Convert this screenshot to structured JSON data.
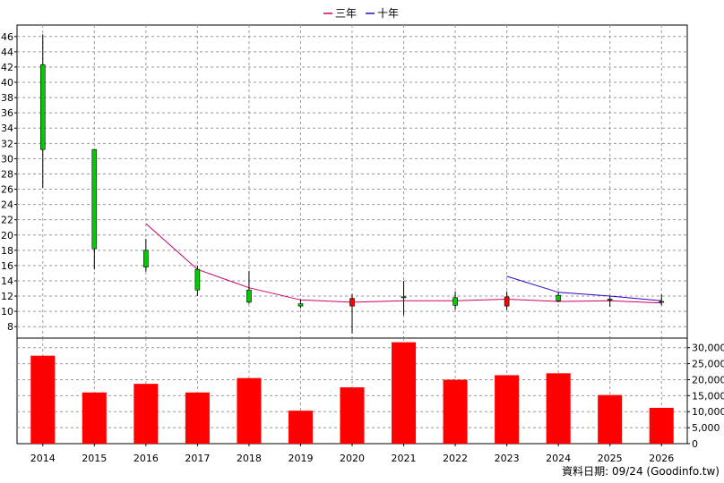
{
  "chart_data": [
    {
      "type": "candlestick",
      "panel": "price",
      "categories": [
        "2014",
        "2015",
        "2016",
        "2017",
        "2018",
        "2019",
        "2020",
        "2021",
        "2022",
        "2023",
        "2024",
        "2025",
        "2026"
      ],
      "ohlc": [
        {
          "x": "2014",
          "open": 31.2,
          "high": 46.3,
          "low": 26.2,
          "close": 42.3
        },
        {
          "x": "2015",
          "open": 18.2,
          "high": 31.2,
          "low": 15.5,
          "close": 31.2
        },
        {
          "x": "2016",
          "open": 15.8,
          "high": 19.5,
          "low": 15.2,
          "close": 18.0
        },
        {
          "x": "2017",
          "open": 12.8,
          "high": 16.0,
          "low": 12.0,
          "close": 15.5
        },
        {
          "x": "2018",
          "open": 11.2,
          "high": 15.3,
          "low": 11.0,
          "close": 12.8
        },
        {
          "x": "2019",
          "open": 10.7,
          "high": 11.6,
          "low": 10.4,
          "close": 11.0
        },
        {
          "x": "2020",
          "open": 11.7,
          "high": 12.3,
          "low": 7.1,
          "close": 10.7
        },
        {
          "x": "2021",
          "open": 11.8,
          "high": 14.0,
          "low": 9.5,
          "close": 11.9
        },
        {
          "x": "2022",
          "open": 10.8,
          "high": 12.6,
          "low": 10.2,
          "close": 11.8
        },
        {
          "x": "2023",
          "open": 11.9,
          "high": 12.6,
          "low": 10.2,
          "close": 10.7
        },
        {
          "x": "2024",
          "open": 11.4,
          "high": 12.5,
          "low": 11.2,
          "close": 12.1
        },
        {
          "x": "2025",
          "open": 11.5,
          "high": 12.0,
          "low": 10.6,
          "close": 11.6
        },
        {
          "x": "2026",
          "open": 11.2,
          "high": 12.2,
          "low": 10.8,
          "close": 11.3
        }
      ],
      "series": [
        {
          "name": "三年",
          "color": "#cc0066",
          "values": [
            null,
            null,
            21.5,
            15.5,
            13.1,
            11.5,
            11.2,
            11.4,
            11.4,
            11.6,
            11.3,
            11.4,
            11.1
          ]
        },
        {
          "name": "十年",
          "color": "#3300cc",
          "values": [
            null,
            null,
            null,
            null,
            null,
            null,
            null,
            null,
            null,
            14.6,
            12.5,
            12.0,
            11.4
          ]
        }
      ],
      "yticks": [
        8,
        10,
        12,
        14,
        16,
        18,
        20,
        22,
        24,
        26,
        28,
        30,
        32,
        34,
        36,
        38,
        40,
        42,
        44,
        46
      ],
      "ylim": [
        6.5,
        47.5
      ],
      "up_color": "#00cc00",
      "down_color": "#ff0000",
      "grid": true,
      "legend_position": "top-center",
      "y_axis_side": "left"
    },
    {
      "type": "bar",
      "panel": "volume",
      "categories": [
        "2014",
        "2015",
        "2016",
        "2017",
        "2018",
        "2019",
        "2020",
        "2021",
        "2022",
        "2023",
        "2024",
        "2025",
        "2026"
      ],
      "values": [
        27500,
        16000,
        18700,
        16000,
        20500,
        10300,
        17600,
        31700,
        20000,
        21400,
        22000,
        15200,
        11200
      ],
      "yticks": [
        0,
        5000,
        10000,
        15000,
        20000,
        25000,
        30000
      ],
      "ytick_labels": [
        "0",
        "5,000",
        "10,000",
        "15,000",
        "20,000",
        "25,000",
        "30,000"
      ],
      "ylim": [
        0,
        33000
      ],
      "color": "#ff0000",
      "grid": true,
      "y_axis_side": "right"
    }
  ],
  "footer": "資料日期: 09/24  (Goodinfo.tw)"
}
